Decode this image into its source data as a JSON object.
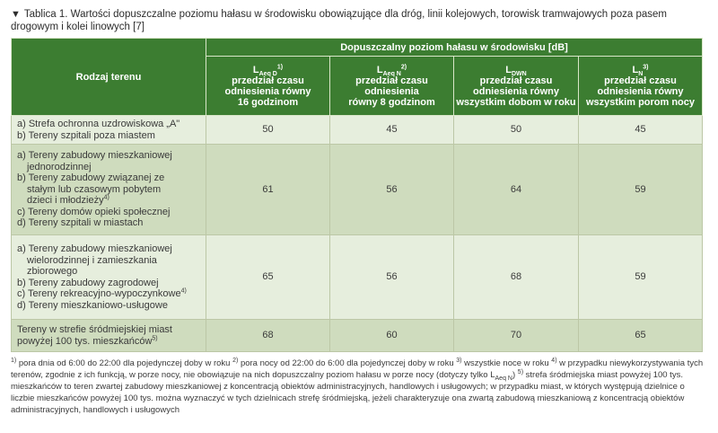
{
  "caption": {
    "arrow": "▼",
    "text": "Tablica 1. Wartości dopuszczalne poziomu hałasu w środowisku obowiązujące dla dróg, linii kolejowych, torowisk tramwajowych poza pasem drogowym i kolei linowych [7]"
  },
  "header": {
    "terrain_label": "Rodzaj terenu",
    "group_label": "Dopuszczalny poziom hałasu w środowisku [dB]",
    "columns": [
      {
        "symbol": "L",
        "sub": "Aeq D",
        "sup": "1)",
        "desc1": "przedział czasu",
        "desc2": "odniesienia równy",
        "desc3": "16 godzinom"
      },
      {
        "symbol": "L",
        "sub": "Aeq N",
        "sup": "2)",
        "desc1": "przedział czasu",
        "desc2": "odniesienia",
        "desc3": "równy 8 godzinom"
      },
      {
        "symbol": "L",
        "sub": "DWN",
        "sup": "",
        "desc1": "przedział czasu",
        "desc2": "odniesienia równy",
        "desc3": "wszystkim dobom w roku"
      },
      {
        "symbol": "L",
        "sub": "N",
        "sup": "3)",
        "desc1": "przedział czasu",
        "desc2": "odniesienia równy",
        "desc3": "wszystkim porom nocy"
      }
    ]
  },
  "rows": [
    {
      "lines": [
        {
          "text": "a) Strefa ochronna uzdrowiskowa „A\"",
          "indent": false
        },
        {
          "text": "b) Tereny szpitali poza miastem",
          "indent": false
        }
      ],
      "values": [
        "50",
        "45",
        "50",
        "45"
      ]
    },
    {
      "lines": [
        {
          "text": "a) Tereny zabudowy mieszkaniowej",
          "indent": false
        },
        {
          "text": "jednorodzinnej",
          "indent": true
        },
        {
          "text": "b) Tereny zabudowy związanej ze",
          "indent": false
        },
        {
          "text": "stałym lub czasowym pobytem",
          "indent": true
        },
        {
          "text": "dzieci i młodzieży",
          "indent": true,
          "sup": "4)"
        },
        {
          "text": "c) Tereny domów opieki społecznej",
          "indent": false
        },
        {
          "text": "d) Tereny szpitali w miastach",
          "indent": false
        }
      ],
      "values": [
        "61",
        "56",
        "64",
        "59"
      ]
    },
    {
      "lines": [
        {
          "text": "a) Tereny zabudowy mieszkaniowej",
          "indent": false
        },
        {
          "text": "wielorodzinnej i zamieszkania",
          "indent": true
        },
        {
          "text": "zbiorowego",
          "indent": true
        },
        {
          "text": "b) Tereny zabudowy zagrodowej",
          "indent": false
        },
        {
          "text": "c) Tereny rekreacyjno-wypoczynkowe",
          "indent": false,
          "sup": "4)"
        },
        {
          "text": "d) Tereny mieszkaniowo-usługowe",
          "indent": false
        }
      ],
      "values": [
        "65",
        "56",
        "68",
        "59"
      ]
    },
    {
      "lines": [
        {
          "text": "Tereny w strefie śródmiejskiej miast",
          "indent": false
        },
        {
          "text": "powyżej 100 tys. mieszkańców",
          "indent": false,
          "sup": "5)"
        }
      ],
      "values": [
        "68",
        "60",
        "70",
        "65"
      ]
    }
  ],
  "footnotes": [
    {
      "type": "sup",
      "text": "1)"
    },
    {
      "type": "text",
      "text": " pora dnia od 6:00 do 22:00 dla pojedynczej doby w roku  "
    },
    {
      "type": "sup",
      "text": "2)"
    },
    {
      "type": "text",
      "text": " porа nocy od 22:00 do 6:00 dla pojedynczej doby w roku  "
    },
    {
      "type": "sup",
      "text": "3)"
    },
    {
      "type": "text",
      "text": " wszystkie noce w roku  "
    },
    {
      "type": "sup",
      "text": "4)"
    },
    {
      "type": "text",
      "text": " w przypadku niewykorzystywania tych terenów, zgodnie z ich funkcją, w porze nocy, nie obowiązuje na nich dopuszczalny poziom hałasu w porze nocy (dotyczy tylko L"
    },
    {
      "type": "sub",
      "text": "Aeq N"
    },
    {
      "type": "text",
      "text": ")  "
    },
    {
      "type": "sup",
      "text": "5)"
    },
    {
      "type": "text",
      "text": " strefa śródmiejska miast powyżej 100 tys. mieszkańców to teren zwartej zabudowy mieszkaniowej z koncentracją obiektów administracyjnych, handlowych i usługowych; w przypadku miast, w których występują dzielnice o liczbie mieszkańców powyżej 100 tys. można wyznaczyć w tych dzielnicach strefę śródmiejską, jeżeli charakteryzuje ona zwartą zabudową mieszkaniową z koncentracją obiektów administracyjnych, handlowych i usługowych"
    }
  ]
}
